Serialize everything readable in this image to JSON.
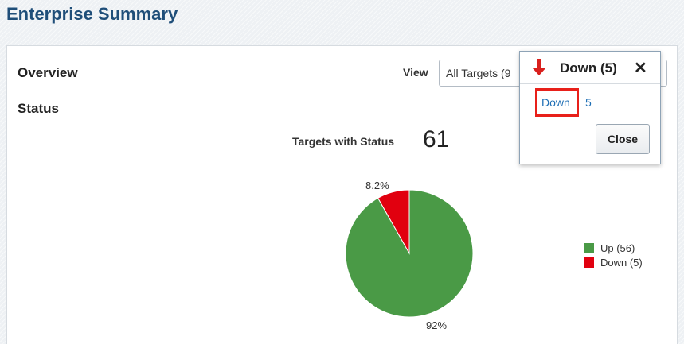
{
  "page": {
    "title": "Enterprise Summary"
  },
  "overview": {
    "title": "Overview",
    "view_label": "View",
    "view_value": "All Targets (9"
  },
  "status": {
    "title": "Status",
    "targets_label": "Targets with Status",
    "targets_count": "61"
  },
  "chart_data": {
    "type": "pie",
    "title": "",
    "slices": [
      {
        "label": "Up (56)",
        "value": 56,
        "percent_label": "92%",
        "color": "#4a9a46"
      },
      {
        "label": "Down (5)",
        "value": 5,
        "percent_label": "8.2%",
        "color": "#e1000f"
      }
    ],
    "legend_position": "right"
  },
  "popup": {
    "title": "Down (5)",
    "arrow_icon": "down-arrow-icon",
    "close_glyph": "✕",
    "link_label": "Down",
    "link_count": "5",
    "close_button_label": "Close",
    "arrow_color": "#d9201d"
  }
}
